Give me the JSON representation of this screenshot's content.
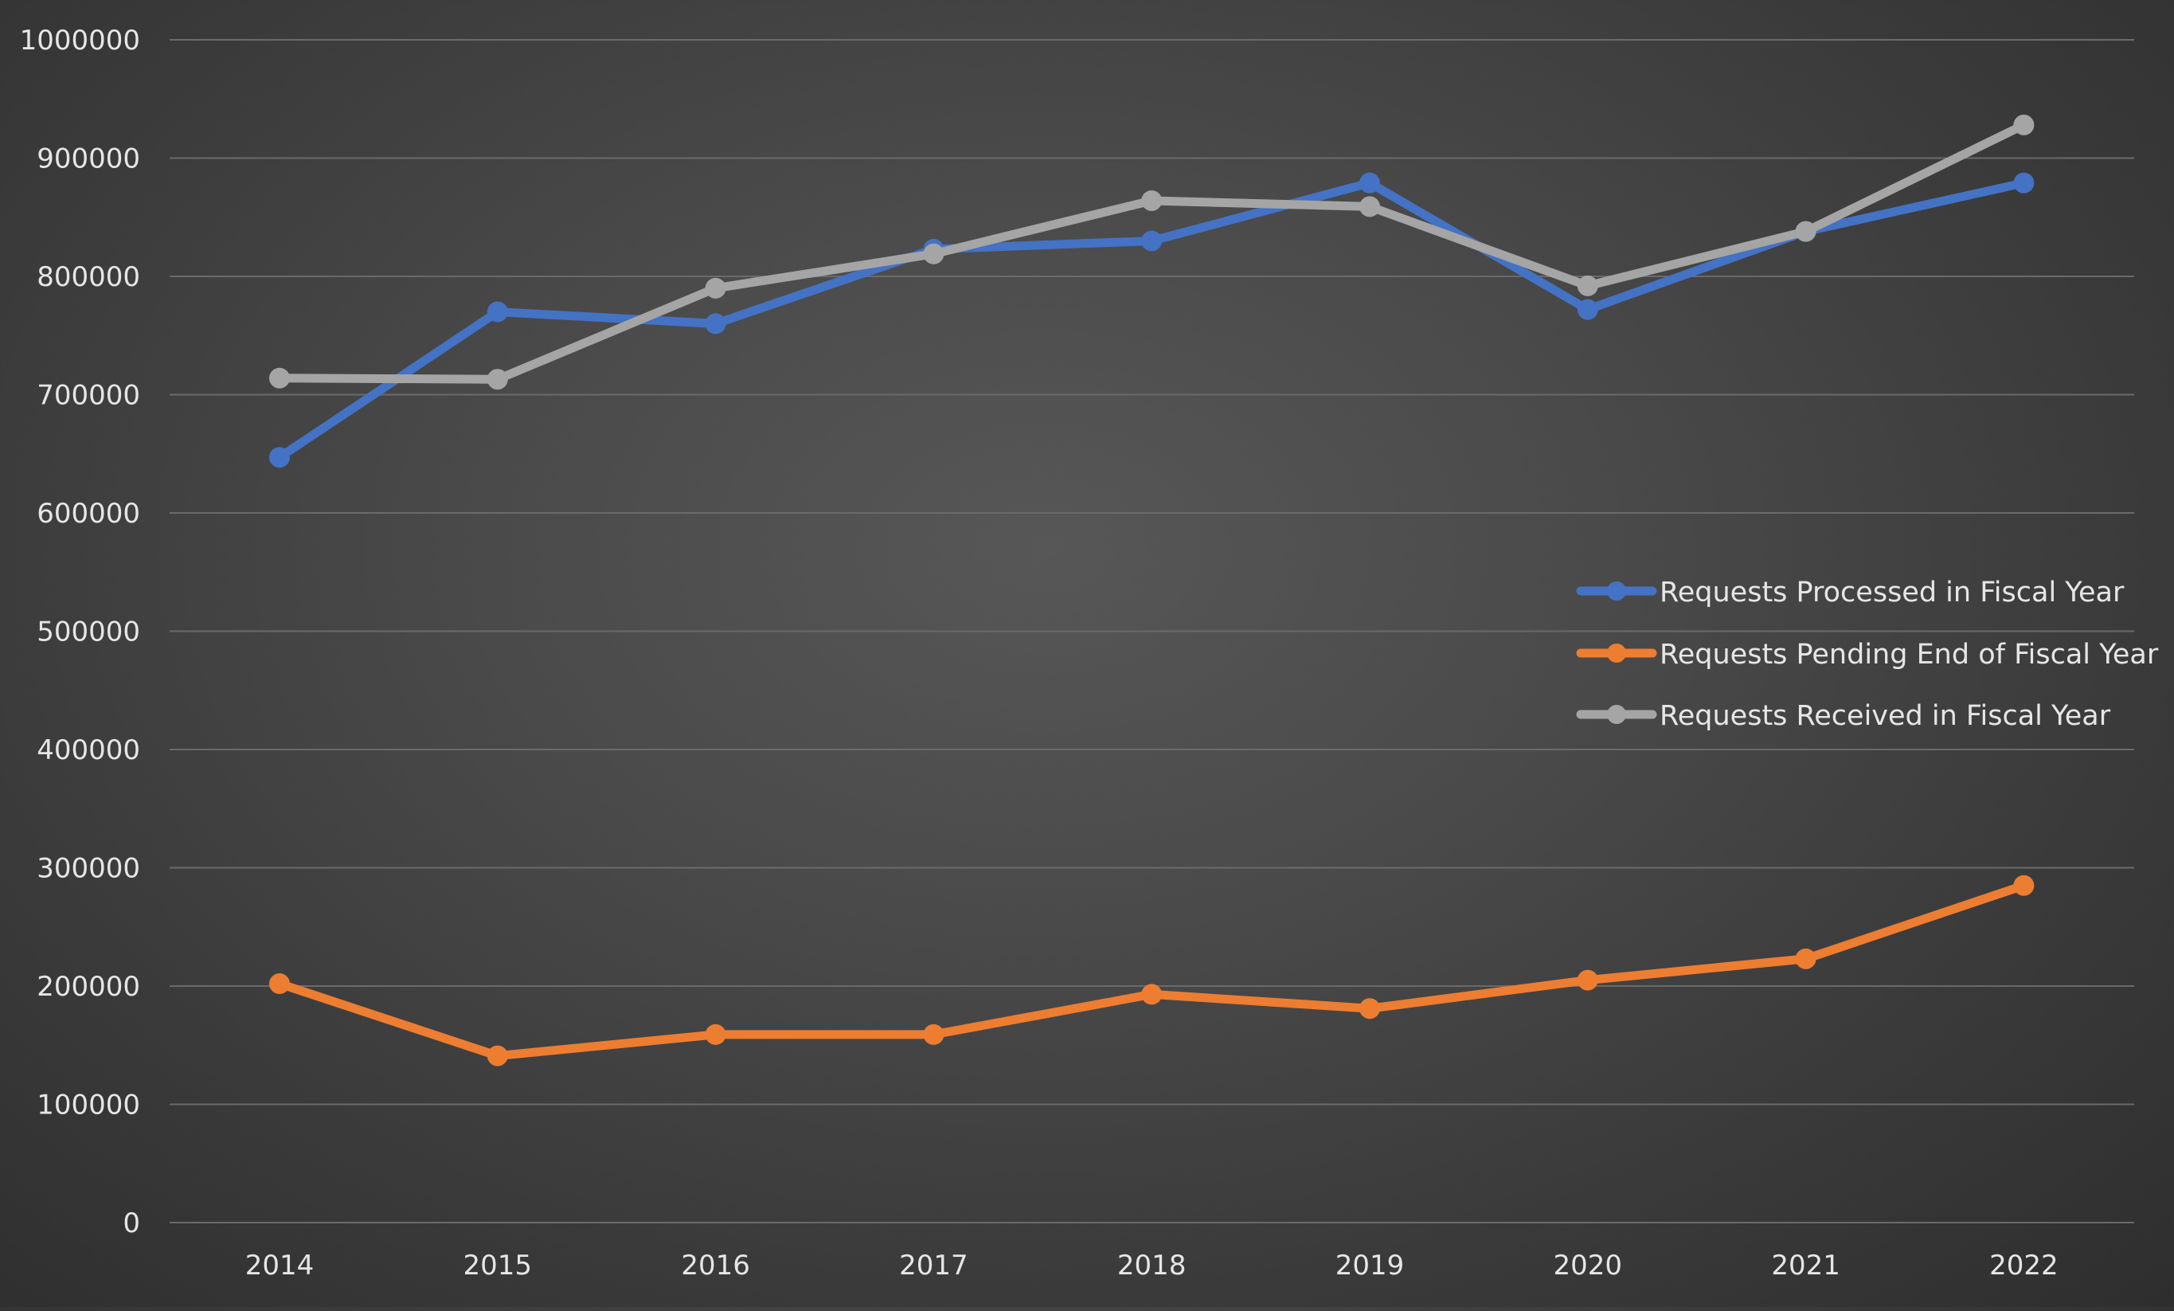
{
  "chart_data": {
    "type": "line",
    "title": "",
    "xlabel": "",
    "ylabel": "",
    "categories": [
      "2014",
      "2015",
      "2016",
      "2017",
      "2018",
      "2019",
      "2020",
      "2021",
      "2022"
    ],
    "ylim": [
      0,
      1000000
    ],
    "yticks": [
      "0",
      "100000",
      "200000",
      "300000",
      "400000",
      "500000",
      "600000",
      "700000",
      "800000",
      "900000",
      "1000000"
    ],
    "grid": true,
    "legend_position": "right-middle",
    "series": [
      {
        "name": "Requests Processed in Fiscal Year",
        "color": "#4472C4",
        "values": [
          647000,
          770000,
          760000,
          823000,
          830000,
          879000,
          772000,
          838000,
          879000
        ]
      },
      {
        "name": "Requests Pending End of Fiscal Year",
        "color": "#ED7D31",
        "values": [
          202000,
          141000,
          159000,
          159000,
          193000,
          181000,
          205000,
          223000,
          285000
        ]
      },
      {
        "name": "Requests Received in Fiscal Year",
        "color": "#A5A5A5",
        "values": [
          714000,
          713000,
          790000,
          819000,
          864000,
          859000,
          792000,
          838000,
          928000
        ]
      }
    ]
  }
}
